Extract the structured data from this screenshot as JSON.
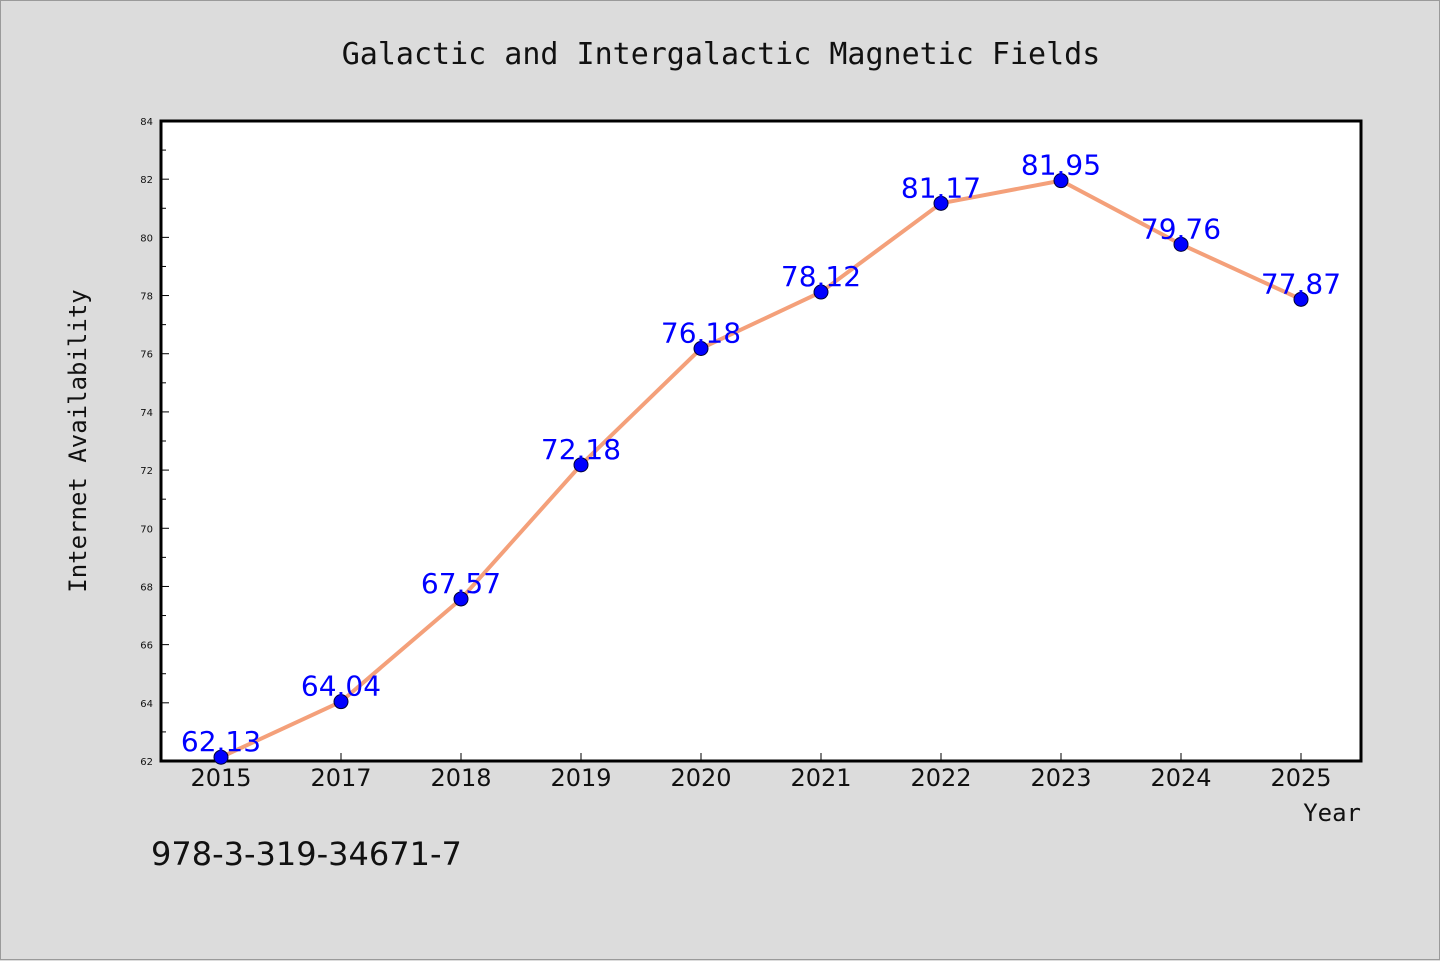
{
  "chart_data": {
    "type": "line",
    "title": "Galactic and Intergalactic Magnetic Fields",
    "xlabel": "Year",
    "ylabel": "Internet Availability",
    "categories": [
      "2015",
      "2017",
      "2018",
      "2019",
      "2020",
      "2021",
      "2022",
      "2023",
      "2024",
      "2025"
    ],
    "series": [
      {
        "values": [
          62.13,
          64.04,
          67.57,
          72.18,
          76.18,
          78.12,
          81.17,
          81.95,
          79.76,
          77.87
        ],
        "data_labels": [
          "62.13",
          "64.04",
          "67.57",
          "72.18",
          "76.18",
          "78.12",
          "81.17",
          "81.95",
          "79.76",
          "77.87"
        ],
        "line_color": "#f4a07a",
        "marker_color": "#0000ff"
      }
    ],
    "ylim": [
      62,
      84
    ],
    "yticks": [
      "62",
      "64",
      "66",
      "68",
      "70",
      "72",
      "74",
      "76",
      "78",
      "80",
      "82",
      "84"
    ],
    "grid": false,
    "legend": "none",
    "background_color": "#dcdcdc",
    "plot_background": "#ffffff",
    "data_label_color": "#0000ff"
  },
  "footer": {
    "text": "978-3-319-34671-7"
  }
}
